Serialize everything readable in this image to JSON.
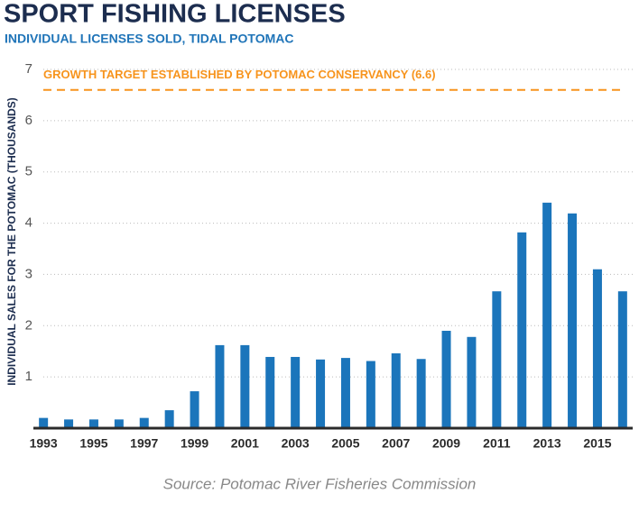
{
  "chart_data": {
    "type": "bar",
    "title": "SPORT FISHING LICENSES",
    "subtitle": "INDIVIDUAL LICENSES SOLD, TIDAL POTOMAC",
    "y_label": "INDIVIDUAL SALES FOR THE POTOMAC (THOUSANDS)",
    "source": "Source: Potomac River Fisheries Commission",
    "x": [
      1993,
      1994,
      1995,
      1996,
      1997,
      1998,
      1999,
      2000,
      2001,
      2002,
      2003,
      2004,
      2005,
      2006,
      2007,
      2008,
      2009,
      2010,
      2011,
      2012,
      2013,
      2014,
      2015,
      2016
    ],
    "values": [
      0.2,
      0.17,
      0.17,
      0.17,
      0.2,
      0.35,
      0.72,
      1.62,
      1.62,
      1.39,
      1.39,
      1.34,
      1.37,
      1.31,
      1.46,
      1.35,
      1.9,
      1.78,
      2.67,
      3.82,
      4.4,
      4.19,
      3.1,
      2.67
    ],
    "color": "#1b75bb",
    "xlim": [
      1992.6,
      2016.4
    ],
    "xticks": [
      1993,
      1995,
      1997,
      1999,
      2001,
      2003,
      2005,
      2007,
      2009,
      2011,
      2013,
      2015
    ],
    "ylim": [
      0,
      7
    ],
    "yticks": [
      1,
      2,
      3,
      4,
      5,
      6,
      7
    ],
    "grid": true,
    "target": {
      "value": 6.6,
      "label": "GROWTH TARGET ESTABLISHED BY POTOMAC CONSERVANCY (6.6)",
      "color": "#f7941d"
    }
  }
}
